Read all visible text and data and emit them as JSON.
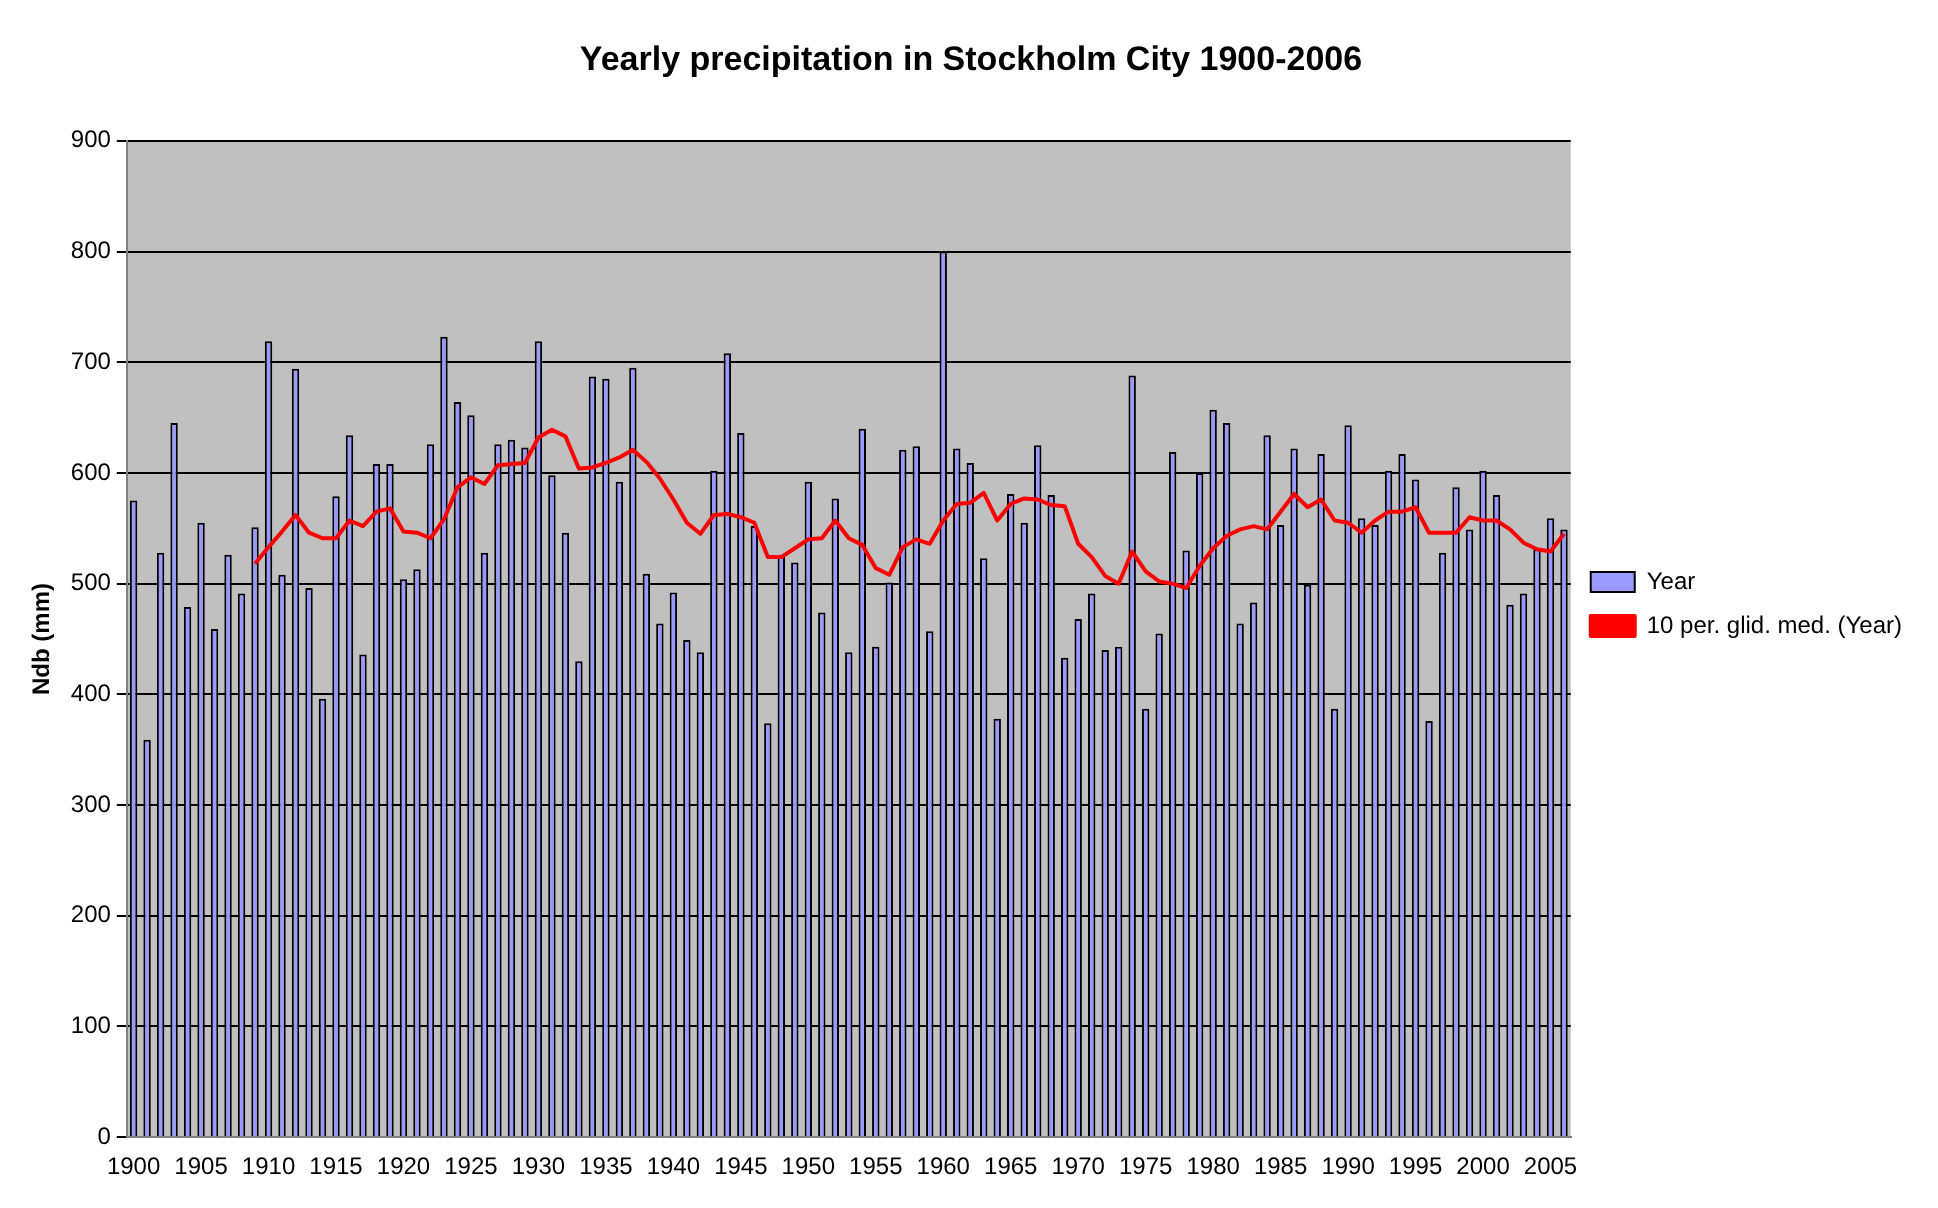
{
  "chart_data": {
    "type": "bar",
    "title": "Yearly precipitation in Stockholm City 1900-2006",
    "ylabel": "Ndb (mm)",
    "categories": [
      "1900",
      null,
      null,
      null,
      null,
      "1905",
      null,
      null,
      null,
      null,
      "1910",
      null,
      null,
      null,
      null,
      "1915",
      null,
      null,
      null,
      null,
      "1920",
      null,
      null,
      null,
      null,
      "1925",
      null,
      null,
      null,
      null,
      "1930",
      null,
      null,
      null,
      null,
      "1935",
      null,
      null,
      null,
      null,
      "1940",
      null,
      null,
      null,
      null,
      "1945",
      null,
      null,
      null,
      null,
      "1950",
      null,
      null,
      null,
      null,
      "1955",
      null,
      null,
      null,
      null,
      "1960",
      null,
      null,
      null,
      null,
      "1965",
      null,
      null,
      null,
      null,
      "1970",
      null,
      null,
      null,
      null,
      "1975",
      null,
      null,
      null,
      null,
      "1980",
      null,
      null,
      null,
      null,
      "1985",
      null,
      null,
      null,
      null,
      "1990",
      null,
      null,
      null,
      null,
      "1995",
      null,
      null,
      null,
      null,
      "2000",
      null,
      null,
      null,
      null,
      "2005",
      null
    ],
    "series": [
      {
        "name": "Year",
        "color": "#9999ff",
        "values": [
          575,
          359,
          528,
          645,
          479,
          555,
          459,
          526,
          491,
          551,
          719,
          508,
          694,
          496,
          396,
          579,
          634,
          436,
          608,
          608,
          504,
          513,
          626,
          723,
          664,
          652,
          528,
          626,
          630,
          623,
          719,
          598,
          546,
          430,
          687,
          685,
          592,
          695,
          509,
          464,
          492,
          449,
          438,
          602,
          708,
          636,
          552,
          374,
          526,
          519,
          592,
          474,
          577,
          438,
          640,
          443,
          501,
          621,
          624,
          457,
          800,
          622,
          609,
          523,
          378,
          581,
          555,
          625,
          580,
          433,
          468,
          491,
          440,
          443,
          688,
          387,
          455,
          619,
          530,
          600,
          657,
          645,
          464,
          483,
          634,
          553,
          622,
          499,
          617,
          387,
          643,
          559,
          553,
          602,
          617,
          594,
          376,
          528,
          587,
          549,
          602,
          580,
          481,
          491,
          531,
          559,
          549
        ]
      },
      {
        "name": "10 per. glid. med. (Year)",
        "type": "line",
        "color": "#ff0000",
        "values": [
          null,
          null,
          null,
          null,
          null,
          null,
          null,
          null,
          null,
          518,
          533,
          547,
          562,
          546,
          541,
          541,
          557,
          552,
          565,
          568,
          547,
          546,
          541,
          558,
          587,
          596,
          590,
          607,
          608,
          609,
          632,
          639,
          633,
          604,
          605,
          609,
          614,
          621,
          610,
          595,
          576,
          555,
          545,
          562,
          563,
          560,
          555,
          524,
          524,
          532,
          540,
          541,
          557,
          541,
          535,
          514,
          508,
          533,
          540,
          536,
          557,
          572,
          573,
          582,
          557,
          572,
          577,
          576,
          571,
          570,
          536,
          524,
          507,
          500,
          529,
          511,
          502,
          500,
          496,
          516,
          532,
          543,
          549,
          552,
          549,
          565,
          581,
          569,
          576,
          557,
          555,
          546,
          557,
          565,
          565,
          569,
          546,
          546,
          546,
          560,
          557,
          557,
          549,
          537,
          531,
          529,
          545
        ]
      }
    ],
    "ylim": [
      0,
      900
    ],
    "yticks": [
      0,
      100,
      200,
      300,
      400,
      500,
      600,
      700,
      800,
      900
    ],
    "grid": "y",
    "legend": "right",
    "marker": "none",
    "line_style": "solid"
  }
}
